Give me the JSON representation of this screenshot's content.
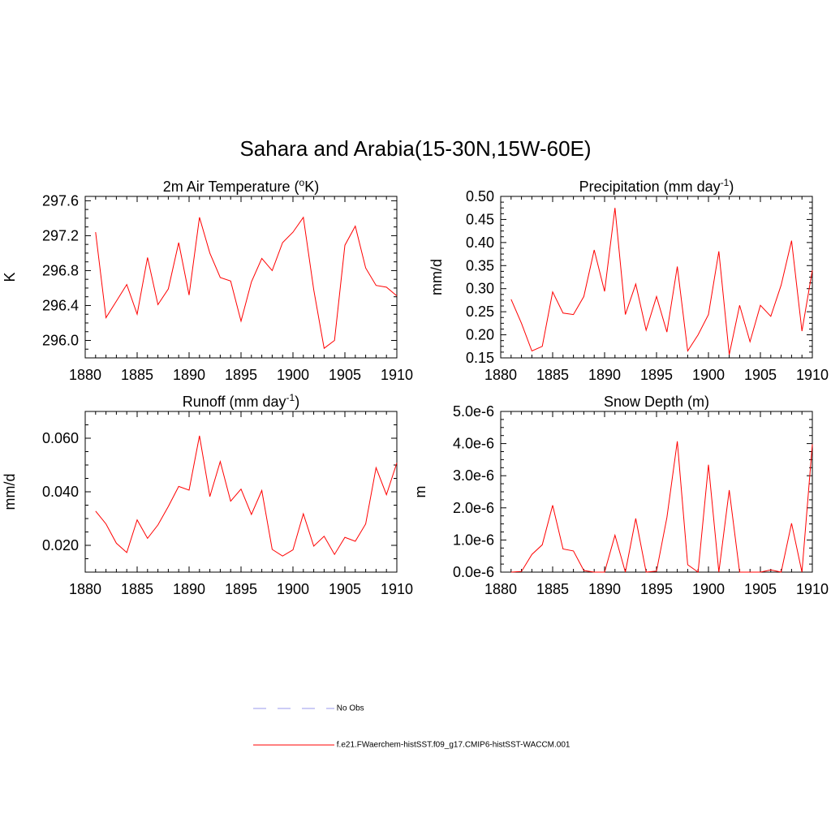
{
  "main_title": "Sahara and Arabia(15-30N,15W-60E)",
  "colors": {
    "series": "#ff0000",
    "legend_no_obs": "#9999ee",
    "axis": "#000000"
  },
  "legend": {
    "items": [
      {
        "label": "No Obs",
        "style": "dashed",
        "color": "#9999ee"
      },
      {
        "label": "f.e21.FWaerchem-histSST.f09_g17.CMIP6-histSST-WACCM.001",
        "style": "solid",
        "color": "#ff0000"
      }
    ]
  },
  "chart_data": [
    {
      "type": "line",
      "title": "2m Air Temperature (",
      "title_sup": "o",
      "title_end": "K)",
      "ylabel": "K",
      "xlim": [
        1880,
        1910
      ],
      "ylim": [
        295.8,
        297.65
      ],
      "xticks": [
        "1880",
        "1885",
        "1890",
        "1895",
        "1900",
        "1905",
        "1910"
      ],
      "yticks": [
        296.0,
        296.4,
        296.8,
        297.2,
        297.6
      ],
      "ytick_labels": [
        "296.0",
        "296.4",
        "296.8",
        "297.2",
        "297.6"
      ],
      "x": [
        1881,
        1882,
        1883,
        1884,
        1885,
        1886,
        1887,
        1888,
        1889,
        1890,
        1891,
        1892,
        1893,
        1894,
        1895,
        1896,
        1897,
        1898,
        1899,
        1900,
        1901,
        1902,
        1903,
        1904,
        1905,
        1906,
        1907,
        1908,
        1909,
        1910
      ],
      "values": [
        297.24,
        296.26,
        296.45,
        296.64,
        296.3,
        296.95,
        296.41,
        296.59,
        297.12,
        296.52,
        297.41,
        297.0,
        296.72,
        296.68,
        296.22,
        296.67,
        296.94,
        296.8,
        297.12,
        297.24,
        297.41,
        296.58,
        295.91,
        296.0,
        297.09,
        297.31,
        296.83,
        296.63,
        296.61,
        296.51
      ]
    },
    {
      "type": "line",
      "title": "Precipitation (mm day",
      "title_sup": "-1",
      "title_end": ")",
      "ylabel": "mm/d",
      "xlim": [
        1880,
        1910
      ],
      "ylim": [
        0.15,
        0.5
      ],
      "xticks": [
        "1880",
        "1885",
        "1890",
        "1895",
        "1900",
        "1905",
        "1910"
      ],
      "yticks": [
        0.15,
        0.2,
        0.25,
        0.3,
        0.35,
        0.4,
        0.45,
        0.5
      ],
      "ytick_labels": [
        "0.15",
        "0.20",
        "0.25",
        "0.30",
        "0.35",
        "0.40",
        "0.45",
        "0.50"
      ],
      "x": [
        1881,
        1882,
        1883,
        1884,
        1885,
        1886,
        1887,
        1888,
        1889,
        1890,
        1891,
        1892,
        1893,
        1894,
        1895,
        1896,
        1897,
        1898,
        1899,
        1900,
        1901,
        1902,
        1903,
        1904,
        1905,
        1906,
        1907,
        1908,
        1909,
        1910
      ],
      "values": [
        0.277,
        0.225,
        0.165,
        0.175,
        0.293,
        0.247,
        0.244,
        0.283,
        0.384,
        0.294,
        0.475,
        0.244,
        0.31,
        0.21,
        0.283,
        0.206,
        0.348,
        0.165,
        0.2,
        0.244,
        0.381,
        0.157,
        0.264,
        0.185,
        0.264,
        0.24,
        0.308,
        0.404,
        0.208,
        0.34
      ]
    },
    {
      "type": "line",
      "title": "Runoff (mm day",
      "title_sup": "-1",
      "title_end": ")",
      "ylabel": "mm/d",
      "xlim": [
        1880,
        1910
      ],
      "ylim": [
        0.01,
        0.07
      ],
      "xticks": [
        "1880",
        "1885",
        "1890",
        "1895",
        "1900",
        "1905",
        "1910"
      ],
      "yticks": [
        0.02,
        0.04,
        0.06
      ],
      "ytick_labels": [
        "0.020",
        "0.040",
        "0.060"
      ],
      "x": [
        1881,
        1882,
        1883,
        1884,
        1885,
        1886,
        1887,
        1888,
        1889,
        1890,
        1891,
        1892,
        1893,
        1894,
        1895,
        1896,
        1897,
        1898,
        1899,
        1900,
        1901,
        1902,
        1903,
        1904,
        1905,
        1906,
        1907,
        1908,
        1909,
        1910
      ],
      "values": [
        0.0328,
        0.028,
        0.0208,
        0.0173,
        0.0295,
        0.0226,
        0.0276,
        0.0345,
        0.042,
        0.0406,
        0.0609,
        0.0382,
        0.0513,
        0.0365,
        0.041,
        0.0315,
        0.0405,
        0.0185,
        0.016,
        0.0183,
        0.0318,
        0.0197,
        0.0234,
        0.0166,
        0.023,
        0.0215,
        0.028,
        0.049,
        0.0389,
        0.0508
      ]
    },
    {
      "type": "line",
      "title": "Snow Depth (m)",
      "title_sup": "",
      "title_end": "",
      "ylabel": "m",
      "xlim": [
        1880,
        1910
      ],
      "ylim": [
        0.0,
        5e-06
      ],
      "xticks": [
        "1880",
        "1885",
        "1890",
        "1895",
        "1900",
        "1905",
        "1910"
      ],
      "yticks": [
        0.0,
        1e-06,
        2e-06,
        3e-06,
        4e-06,
        5e-06
      ],
      "ytick_labels": [
        "0.0e-6",
        "1.0e-6",
        "2.0e-6",
        "3.0e-6",
        "4.0e-6",
        "5.0e-6"
      ],
      "x": [
        1881,
        1882,
        1883,
        1884,
        1885,
        1886,
        1887,
        1888,
        1889,
        1890,
        1891,
        1892,
        1893,
        1894,
        1895,
        1896,
        1897,
        1898,
        1899,
        1900,
        1901,
        1902,
        1903,
        1904,
        1905,
        1906,
        1907,
        1908,
        1909,
        1910
      ],
      "values": [
        0.0,
        2e-08,
        5.5e-07,
        8.5e-07,
        2.08e-06,
        7.2e-07,
        6.6e-07,
        5e-08,
        0.0,
        0.0,
        1.15e-06,
        0.0,
        1.67e-06,
        0.0,
        3e-08,
        1.7e-06,
        4.07e-06,
        2.3e-07,
        0.0,
        3.34e-06,
        0.0,
        2.55e-06,
        0.0,
        0.0,
        0.0,
        7e-08,
        0.0,
        1.52e-06,
        0.0,
        3.98e-06
      ]
    }
  ]
}
